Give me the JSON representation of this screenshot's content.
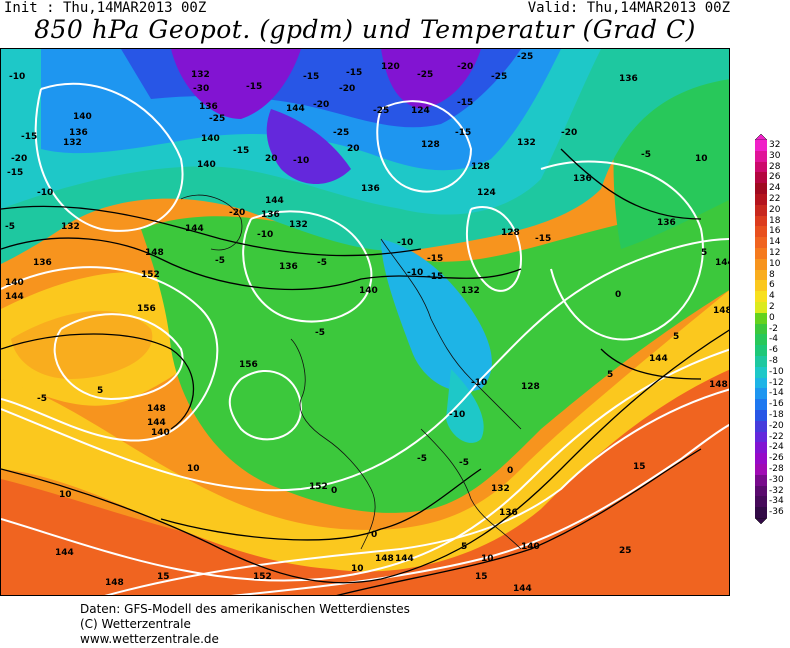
{
  "header": {
    "init": "Init : Thu,14MAR2013 00Z",
    "valid": "Valid: Thu,14MAR2013 00Z",
    "title": "850 hPa Geopot. (gpdm) und Temperatur (Grad C)"
  },
  "legend": {
    "levels": [
      {
        "label": "32",
        "color": "#f020c8"
      },
      {
        "label": "30",
        "color": "#e01498"
      },
      {
        "label": "28",
        "color": "#cc0a6c"
      },
      {
        "label": "26",
        "color": "#b40640"
      },
      {
        "label": "24",
        "color": "#a00a20"
      },
      {
        "label": "22",
        "color": "#b4141e"
      },
      {
        "label": "20",
        "color": "#c8281e"
      },
      {
        "label": "18",
        "color": "#dc3c1e"
      },
      {
        "label": "16",
        "color": "#e8501e"
      },
      {
        "label": "14",
        "color": "#f06420"
      },
      {
        "label": "12",
        "color": "#f57a1e"
      },
      {
        "label": "10",
        "color": "#f7941e"
      },
      {
        "label": "8",
        "color": "#f9ad1e"
      },
      {
        "label": "6",
        "color": "#fbc81e"
      },
      {
        "label": "4",
        "color": "#f8e01e"
      },
      {
        "label": "2",
        "color": "#dcea1e"
      },
      {
        "label": "0",
        "color": "#64d21e"
      },
      {
        "label": "-2",
        "color": "#3cc83c"
      },
      {
        "label": "-4",
        "color": "#28c85a"
      },
      {
        "label": "-6",
        "color": "#1ec878"
      },
      {
        "label": "-8",
        "color": "#1ec8a0"
      },
      {
        "label": "-10",
        "color": "#1ec8c8"
      },
      {
        "label": "-12",
        "color": "#1eb4e6"
      },
      {
        "label": "-14",
        "color": "#1e96f0"
      },
      {
        "label": "-16",
        "color": "#1e78f0"
      },
      {
        "label": "-18",
        "color": "#2856e6"
      },
      {
        "label": "-20",
        "color": "#463cdc"
      },
      {
        "label": "-22",
        "color": "#6428dc"
      },
      {
        "label": "-24",
        "color": "#8214d2"
      },
      {
        "label": "-26",
        "color": "#960ac8"
      },
      {
        "label": "-28",
        "color": "#a00ab4"
      },
      {
        "label": "-30",
        "color": "#780a8c"
      },
      {
        "label": "-32",
        "color": "#5a0a6e"
      },
      {
        "label": "-34",
        "color": "#460a5a"
      },
      {
        "label": "-36",
        "color": "#320a46"
      }
    ]
  },
  "map_labels": {
    "geopotential": [
      "132",
      "136",
      "140",
      "144",
      "148",
      "152",
      "156",
      "120",
      "124",
      "128"
    ],
    "temperature": [
      "-30",
      "-25",
      "-20",
      "-15",
      "-10",
      "-5",
      "0",
      "5",
      "10",
      "15",
      "20",
      "25"
    ]
  },
  "credits": [
    "Daten: GFS-Modell des amerikanischen Wetterdienstes",
    "(C) Wetterzentrale",
    "www.wetterzentrale.de"
  ]
}
